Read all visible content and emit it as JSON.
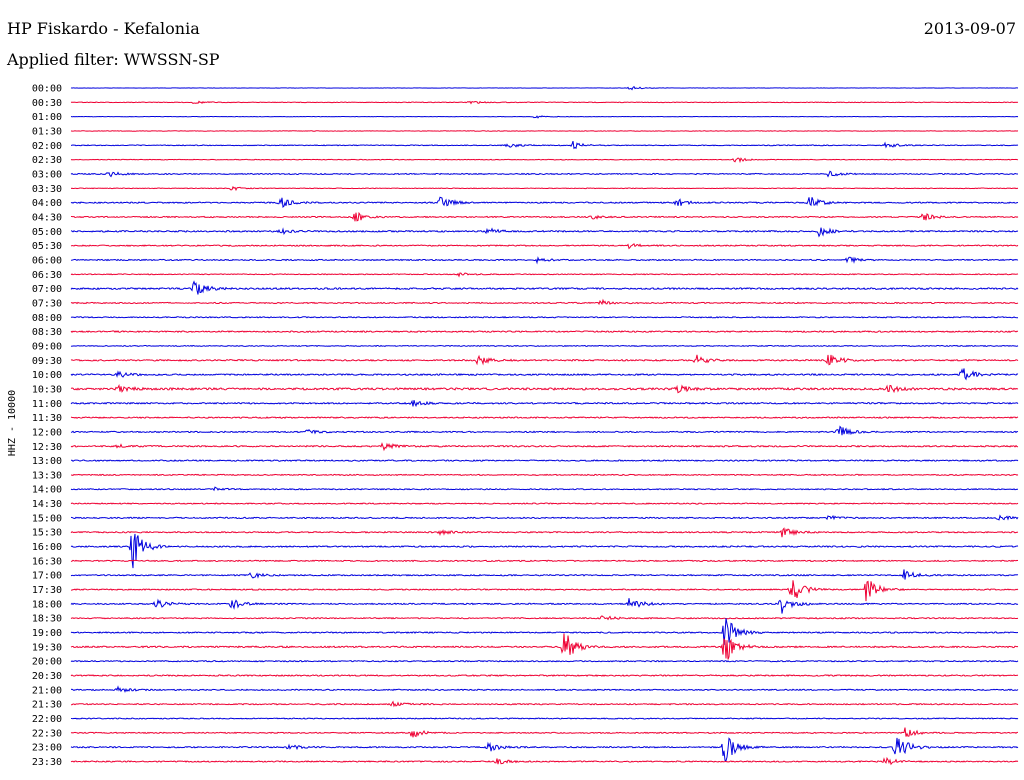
{
  "header": {
    "title": "HP Fiskardo - Kefalonia",
    "date": "2013-09-07",
    "filter": "Applied filter: WWSSN-SP"
  },
  "chart_data": {
    "type": "line",
    "ylabel": "HHZ - 10000",
    "row_labels": [
      "00:00",
      "00:30",
      "01:00",
      "01:30",
      "02:00",
      "02:30",
      "03:00",
      "03:30",
      "04:00",
      "04:30",
      "05:00",
      "05:30",
      "06:00",
      "06:30",
      "07:00",
      "07:30",
      "08:00",
      "08:30",
      "09:00",
      "09:30",
      "10:00",
      "10:30",
      "11:00",
      "11:30",
      "12:00",
      "12:30",
      "13:00",
      "13:30",
      "14:00",
      "14:30",
      "15:00",
      "15:30",
      "16:00",
      "16:30",
      "17:00",
      "17:30",
      "18:00",
      "18:30",
      "19:00",
      "19:30",
      "20:00",
      "20:30",
      "21:00",
      "21:30",
      "22:00",
      "22:30",
      "23:00",
      "23:30"
    ],
    "colors": [
      "#0000dd",
      "#ee0033"
    ],
    "grid": false,
    "noise": [
      0.4,
      0.7,
      0.4,
      0.6,
      0.9,
      0.7,
      1.2,
      0.7,
      1.4,
      1.3,
      1.6,
      1.3,
      1.3,
      1.0,
      1.8,
      1.3,
      1.2,
      1.5,
      1.0,
      1.6,
      1.6,
      2.2,
      1.6,
      1.4,
      1.4,
      1.5,
      1.4,
      1.2,
      1.2,
      1.2,
      1.4,
      1.4,
      1.5,
      1.3,
      1.4,
      1.3,
      1.4,
      1.3,
      1.4,
      1.6,
      1.3,
      1.4,
      1.3,
      1.3,
      1.1,
      1.2,
      1.4,
      1.3
    ],
    "events": [
      {
        "row": 0,
        "x": 0.59,
        "amp": 2
      },
      {
        "row": 1,
        "x": 0.42,
        "amp": 2
      },
      {
        "row": 1,
        "x": 0.13,
        "amp": 1.5
      },
      {
        "row": 2,
        "x": 0.49,
        "amp": 1.5
      },
      {
        "row": 4,
        "x": 0.46,
        "amp": 3
      },
      {
        "row": 4,
        "x": 0.53,
        "amp": 4
      },
      {
        "row": 4,
        "x": 0.86,
        "amp": 3
      },
      {
        "row": 5,
        "x": 0.7,
        "amp": 3
      },
      {
        "row": 6,
        "x": 0.04,
        "amp": 3
      },
      {
        "row": 6,
        "x": 0.8,
        "amp": 3
      },
      {
        "row": 7,
        "x": 0.17,
        "amp": 2
      },
      {
        "row": 8,
        "x": 0.22,
        "amp": 6
      },
      {
        "row": 8,
        "x": 0.39,
        "amp": 7
      },
      {
        "row": 8,
        "x": 0.64,
        "amp": 4
      },
      {
        "row": 8,
        "x": 0.78,
        "amp": 7
      },
      {
        "row": 9,
        "x": 0.3,
        "amp": 5
      },
      {
        "row": 9,
        "x": 0.55,
        "amp": 2
      },
      {
        "row": 9,
        "x": 0.9,
        "amp": 4
      },
      {
        "row": 10,
        "x": 0.22,
        "amp": 3
      },
      {
        "row": 10,
        "x": 0.44,
        "amp": 3
      },
      {
        "row": 10,
        "x": 0.79,
        "amp": 5
      },
      {
        "row": 11,
        "x": 0.59,
        "amp": 3
      },
      {
        "row": 12,
        "x": 0.49,
        "amp": 3
      },
      {
        "row": 12,
        "x": 0.82,
        "amp": 3
      },
      {
        "row": 13,
        "x": 0.41,
        "amp": 2
      },
      {
        "row": 14,
        "x": 0.13,
        "amp": 9
      },
      {
        "row": 15,
        "x": 0.56,
        "amp": 3
      },
      {
        "row": 19,
        "x": 0.43,
        "amp": 5
      },
      {
        "row": 19,
        "x": 0.66,
        "amp": 6
      },
      {
        "row": 19,
        "x": 0.8,
        "amp": 7
      },
      {
        "row": 20,
        "x": 0.94,
        "amp": 8
      },
      {
        "row": 20,
        "x": 0.05,
        "amp": 3
      },
      {
        "row": 21,
        "x": 0.05,
        "amp": 4
      },
      {
        "row": 21,
        "x": 0.64,
        "amp": 5
      },
      {
        "row": 21,
        "x": 0.86,
        "amp": 5
      },
      {
        "row": 22,
        "x": 0.36,
        "amp": 3
      },
      {
        "row": 24,
        "x": 0.81,
        "amp": 7
      },
      {
        "row": 24,
        "x": 0.25,
        "amp": 2
      },
      {
        "row": 25,
        "x": 0.33,
        "amp": 4
      },
      {
        "row": 25,
        "x": 0.05,
        "amp": 2
      },
      {
        "row": 28,
        "x": 0.15,
        "amp": 2
      },
      {
        "row": 30,
        "x": 0.98,
        "amp": 4
      },
      {
        "row": 30,
        "x": 0.8,
        "amp": 2
      },
      {
        "row": 31,
        "x": 0.75,
        "amp": 6
      },
      {
        "row": 31,
        "x": 0.39,
        "amp": 2
      },
      {
        "row": 32,
        "x": 0.065,
        "amp": 22
      },
      {
        "row": 34,
        "x": 0.19,
        "amp": 3
      },
      {
        "row": 34,
        "x": 0.88,
        "amp": 6
      },
      {
        "row": 35,
        "x": 0.76,
        "amp": 16
      },
      {
        "row": 35,
        "x": 0.84,
        "amp": 14
      },
      {
        "row": 36,
        "x": 0.09,
        "amp": 6
      },
      {
        "row": 36,
        "x": 0.17,
        "amp": 5
      },
      {
        "row": 36,
        "x": 0.59,
        "amp": 8
      },
      {
        "row": 36,
        "x": 0.75,
        "amp": 10
      },
      {
        "row": 37,
        "x": 0.56,
        "amp": 3
      },
      {
        "row": 38,
        "x": 0.69,
        "amp": 20
      },
      {
        "row": 39,
        "x": 0.52,
        "amp": 18
      },
      {
        "row": 39,
        "x": 0.69,
        "amp": 18
      },
      {
        "row": 42,
        "x": 0.05,
        "amp": 3
      },
      {
        "row": 43,
        "x": 0.34,
        "amp": 3
      },
      {
        "row": 45,
        "x": 0.36,
        "amp": 5
      },
      {
        "row": 45,
        "x": 0.88,
        "amp": 6
      },
      {
        "row": 46,
        "x": 0.23,
        "amp": 3
      },
      {
        "row": 46,
        "x": 0.44,
        "amp": 6
      },
      {
        "row": 46,
        "x": 0.69,
        "amp": 18
      },
      {
        "row": 46,
        "x": 0.87,
        "amp": 20
      },
      {
        "row": 47,
        "x": 0.45,
        "amp": 3
      },
      {
        "row": 47,
        "x": 0.86,
        "amp": 4
      }
    ]
  }
}
